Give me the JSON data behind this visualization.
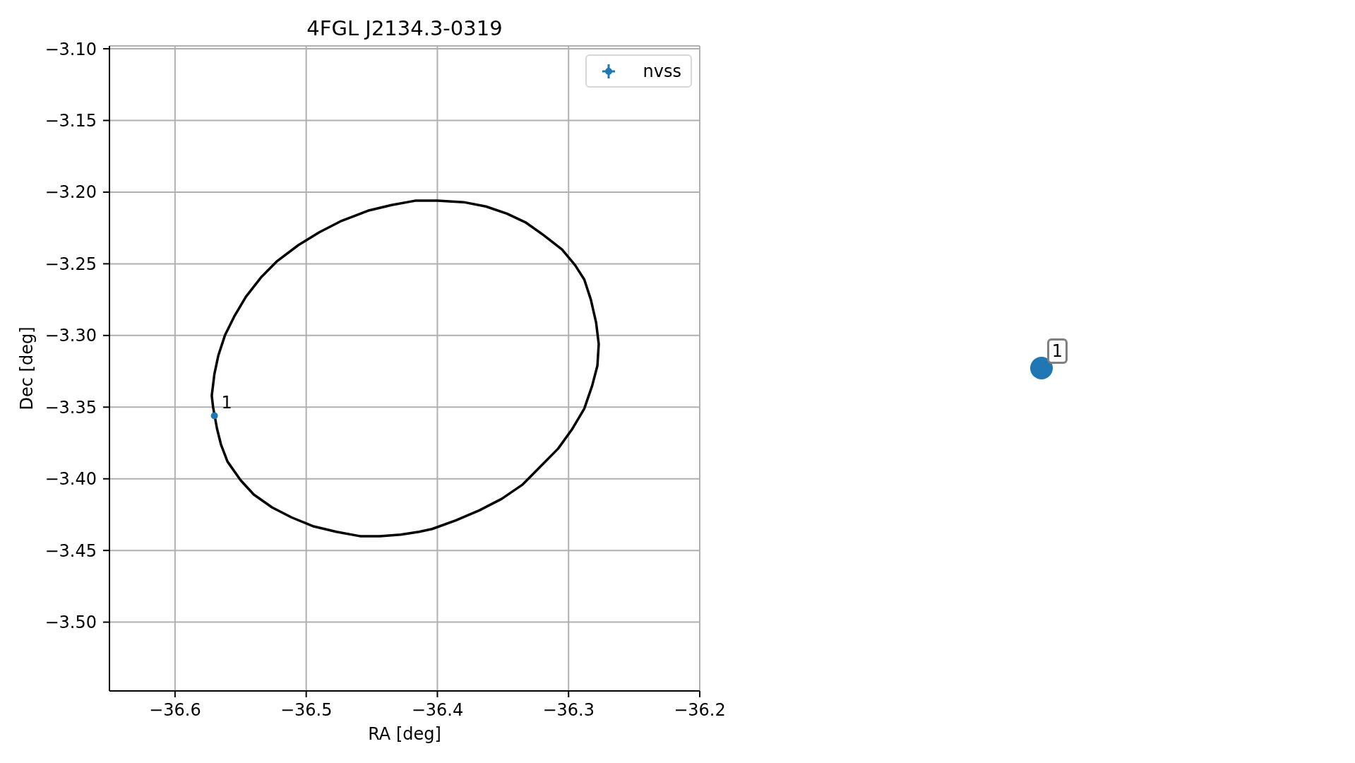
{
  "chart_data": [
    {
      "type": "scatter",
      "title": "4FGL J2134.3-0319",
      "xlabel": "RA [deg]",
      "ylabel": "Dec [deg]",
      "xlim": [
        -36.65,
        -36.2
      ],
      "ylim": [
        -3.548,
        -3.098
      ],
      "xticks": [
        {
          "value": -36.6,
          "label": "−36.6"
        },
        {
          "value": -36.5,
          "label": "−36.5"
        },
        {
          "value": -36.4,
          "label": "−36.4"
        },
        {
          "value": -36.3,
          "label": "−36.3"
        },
        {
          "value": -36.2,
          "label": "−36.2"
        }
      ],
      "yticks": [
        {
          "value": -3.5,
          "label": "−3.50"
        },
        {
          "value": -3.45,
          "label": "−3.45"
        },
        {
          "value": -3.4,
          "label": "−3.40"
        },
        {
          "value": -3.35,
          "label": "−3.35"
        },
        {
          "value": -3.3,
          "label": "−3.30"
        },
        {
          "value": -3.25,
          "label": "−3.25"
        },
        {
          "value": -3.2,
          "label": "−3.20"
        },
        {
          "value": -3.15,
          "label": "−3.15"
        },
        {
          "value": -3.1,
          "label": "−3.10"
        }
      ],
      "grid": true,
      "legend": "top right",
      "series": [
        {
          "type": "line",
          "color": "#000000",
          "x": [
            -36.572,
            -36.57,
            -36.567,
            -36.562,
            -36.555,
            -36.546,
            -36.534,
            -36.522,
            -36.506,
            -36.49,
            -36.473,
            -36.453,
            -36.435,
            -36.417,
            -36.4,
            -36.38,
            -36.363,
            -36.347,
            -36.333,
            -36.319,
            -36.305,
            -36.295,
            -36.288,
            -36.283,
            -36.279,
            -36.277,
            null,
            -36.572,
            -36.571,
            -36.568,
            -36.565,
            -36.56,
            -36.55,
            -36.54,
            -36.526,
            -36.511,
            -36.495,
            -36.477,
            -36.459,
            -36.444,
            -36.428,
            -36.414,
            -36.404,
            -36.386,
            -36.368,
            -36.351,
            -36.335,
            -36.321,
            -36.308,
            -36.297,
            -36.288,
            -36.282,
            -36.278,
            -36.277
          ],
          "values": [
            -3.342,
            -3.327,
            -3.314,
            -3.3,
            -3.287,
            -3.273,
            -3.259,
            -3.248,
            -3.237,
            -3.228,
            -3.22,
            -3.213,
            -3.209,
            -3.206,
            -3.206,
            -3.207,
            -3.21,
            -3.215,
            -3.221,
            -3.23,
            -3.24,
            -3.251,
            -3.261,
            -3.275,
            -3.291,
            -3.306,
            null,
            -3.342,
            -3.35,
            -3.365,
            -3.376,
            -3.388,
            -3.401,
            -3.411,
            -3.42,
            -3.427,
            -3.433,
            -3.437,
            -3.44,
            -3.44,
            -3.439,
            -3.437,
            -3.435,
            -3.429,
            -3.422,
            -3.414,
            -3.404,
            -3.391,
            -3.379,
            -3.365,
            -3.351,
            -3.335,
            -3.321,
            -3.306
          ]
        },
        {
          "type": "scatter",
          "name": "nvss",
          "color": "#1f77b4",
          "marker": "circle",
          "x": [
            -36.57
          ],
          "values": [
            -3.356
          ]
        }
      ],
      "annotations": [
        {
          "text": "1",
          "x": -36.57,
          "y": -3.356
        }
      ]
    },
    {
      "type": "other",
      "annotations": [
        "1"
      ]
    }
  ]
}
